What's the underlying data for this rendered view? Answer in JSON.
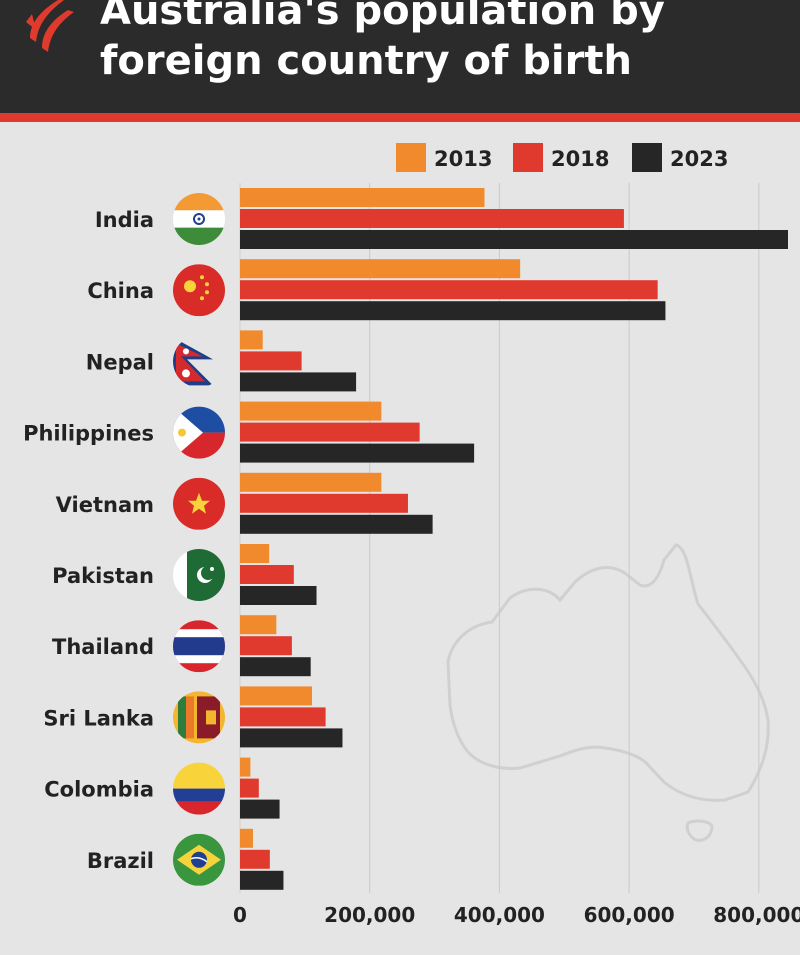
{
  "header": {
    "title_line_1": "Australia's population by",
    "title_line_2": "foreign country of birth"
  },
  "colors": {
    "header_bg": "#2b2b2b",
    "accent_stripe": "#e03a2e",
    "background": "#e5e5e5",
    "series_2013": "#f08a2c",
    "series_2018": "#e03a2e",
    "series_2023": "#262626",
    "map_outline": "#d0d0d0"
  },
  "chart_data": {
    "type": "bar",
    "orientation": "horizontal",
    "title": "Australia's population by foreign country of birth",
    "categories": [
      "India",
      "China",
      "Nepal",
      "Philippines",
      "Vietnam",
      "Pakistan",
      "Thailand",
      "Sri Lanka",
      "Colombia",
      "Brazil"
    ],
    "category_icons": [
      "india-flag-icon",
      "china-flag-icon",
      "nepal-flag-icon",
      "philippines-flag-icon",
      "vietnam-flag-icon",
      "pakistan-flag-icon",
      "thailand-flag-icon",
      "sri-lanka-flag-icon",
      "colombia-flag-icon",
      "brazil-flag-icon"
    ],
    "series": [
      {
        "name": "2013",
        "color": "#f08a2c",
        "values": [
          377000,
          432000,
          35000,
          218000,
          218000,
          45000,
          56000,
          111000,
          16000,
          20000
        ]
      },
      {
        "name": "2018",
        "color": "#e03a2e",
        "values": [
          592000,
          644000,
          95000,
          277000,
          259000,
          83000,
          80000,
          132000,
          29000,
          46000
        ]
      },
      {
        "name": "2023",
        "color": "#262626",
        "values": [
          845000,
          656000,
          179000,
          361000,
          297000,
          118000,
          109000,
          158000,
          61000,
          67000
        ]
      }
    ],
    "xlim": [
      0,
      845000
    ],
    "x_ticks": [
      0,
      200000,
      400000,
      600000,
      800000
    ],
    "x_tick_labels": [
      "0",
      "200,000",
      "400,000",
      "600,000",
      "800,000"
    ],
    "grid": true,
    "legend_position": "top-right",
    "xlabel": "",
    "ylabel": ""
  }
}
